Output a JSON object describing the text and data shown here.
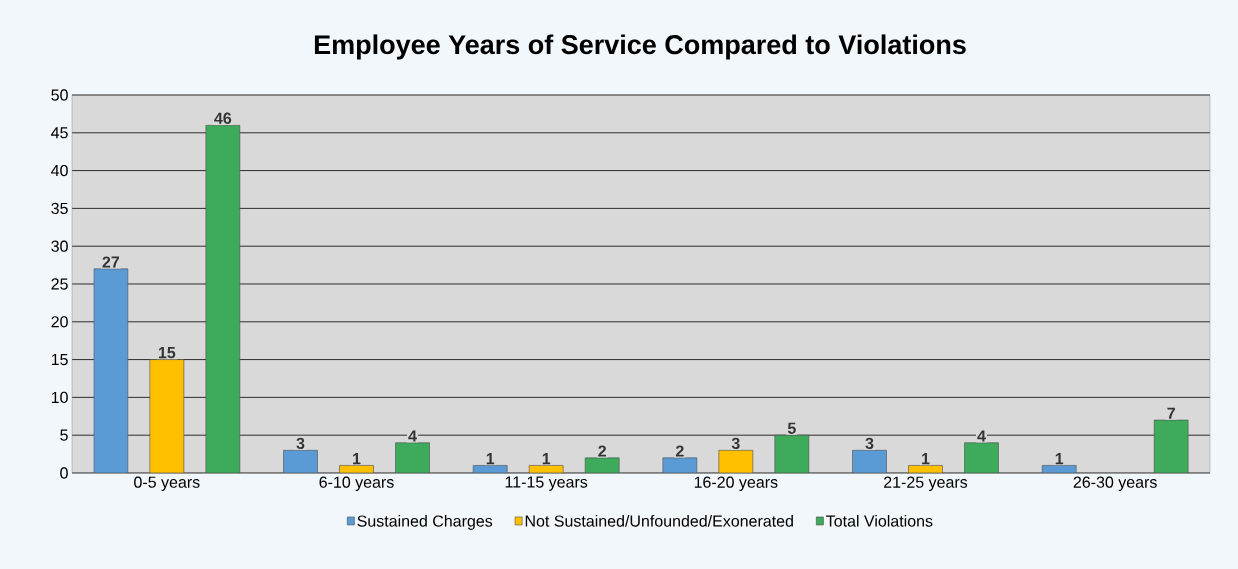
{
  "chart_data": {
    "type": "bar",
    "title": "Employee Years of Service Compared to Violations",
    "categories": [
      "0-5 years",
      "6-10 years",
      "11-15 years",
      "16-20 years",
      "21-25 years",
      "26-30 years"
    ],
    "series": [
      {
        "name": "Sustained  Charges",
        "color": "#5b9bd5",
        "values": [
          27,
          3,
          1,
          2,
          3,
          1
        ]
      },
      {
        "name": "Not Sustained/Unfounded/Exonerated",
        "color": "#ffc000",
        "values": [
          15,
          1,
          1,
          3,
          1,
          null
        ]
      },
      {
        "name": "Total Violations",
        "color": "#3daa5c",
        "values": [
          46,
          4,
          2,
          5,
          4,
          7
        ]
      }
    ],
    "ylim": [
      0,
      50
    ],
    "yticks": [
      0,
      5,
      10,
      15,
      20,
      25,
      30,
      35,
      40,
      45,
      50
    ],
    "grid": "y",
    "legend": "bottom",
    "data_labels": true
  }
}
